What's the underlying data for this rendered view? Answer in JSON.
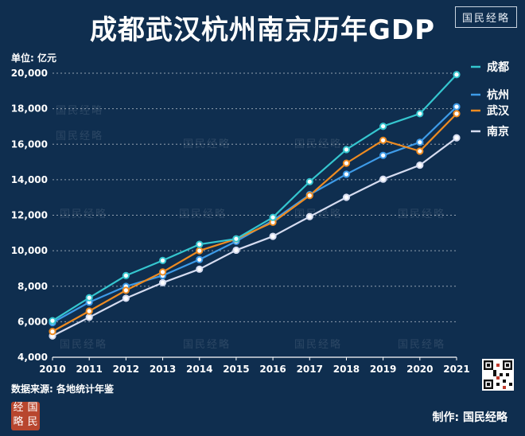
{
  "header": {
    "title": "成都武汉杭州南京历年GDP",
    "brand": "国民经略"
  },
  "footer": {
    "source": "数据来源: 各地统计年鉴",
    "credit": "制作: 国民经略",
    "seal_chars": [
      "经",
      "国",
      "略",
      "民"
    ]
  },
  "watermark_text": "国民经略",
  "colors": {
    "background": "#0f2e4f",
    "chengdu": "#35c6cf",
    "hangzhou": "#3e9be8",
    "wuhan": "#ee8b21",
    "nanjing": "#d6dcf0"
  },
  "chart_data": {
    "type": "line",
    "title": "成都武汉杭州南京历年GDP",
    "unit_label": "单位: 亿元",
    "xlabel": "",
    "ylabel": "",
    "x": [
      2010,
      2011,
      2012,
      2013,
      2014,
      2015,
      2016,
      2017,
      2018,
      2019,
      2020,
      2021
    ],
    "ylim": [
      4000,
      20000
    ],
    "yticks": [
      4000,
      6000,
      8000,
      10000,
      12000,
      14000,
      16000,
      18000,
      20000
    ],
    "grid": true,
    "legend": "right",
    "series": [
      {
        "name": "成都",
        "color": "#35c6cf",
        "values": [
          6055,
          7350,
          8600,
          9450,
          10360,
          10670,
          11880,
          13890,
          15700,
          17010,
          17720,
          19920
        ]
      },
      {
        "name": "杭州",
        "color": "#3e9be8",
        "values": [
          5950,
          7100,
          7990,
          8600,
          9500,
          10530,
          11700,
          13160,
          14310,
          15370,
          16110,
          18110
        ]
      },
      {
        "name": "武汉",
        "color": "#ee8b21",
        "values": [
          5450,
          6600,
          7770,
          8800,
          10000,
          10660,
          11600,
          13110,
          14930,
          16220,
          15610,
          17720
        ]
      },
      {
        "name": "南京",
        "color": "#d6dcf0",
        "values": [
          5200,
          6250,
          7320,
          8200,
          8960,
          10030,
          10810,
          11920,
          13010,
          14030,
          14820,
          16360
        ]
      }
    ]
  }
}
